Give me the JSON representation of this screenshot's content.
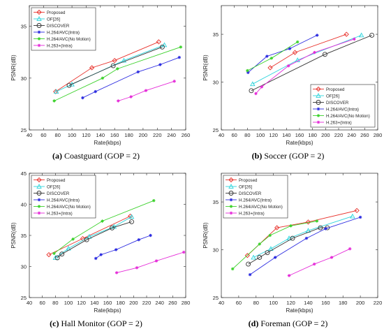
{
  "figure": {
    "captions": [
      {
        "letter": "(a)",
        "text": "Coastguard (GOP = 2)"
      },
      {
        "letter": "(b)",
        "text": "Soccer (GOP = 2)"
      },
      {
        "letter": "(c)",
        "text": "Hall Monitor (GOP = 2)"
      },
      {
        "letter": "(d)",
        "text": "Foreman (GOP = 2)"
      }
    ]
  },
  "series_styles": [
    {
      "name": "Proposed",
      "color": "#e8302a",
      "marker": "diamond"
    },
    {
      "name": "OF[26]",
      "color": "#2dd4dc",
      "marker": "triangle"
    },
    {
      "name": "DISCOVER",
      "color": "#333333",
      "marker": "circle"
    },
    {
      "name": "H.264/AVC(Intra)",
      "color": "#2a2ae0",
      "marker": "star"
    },
    {
      "name": "H.264/AVC(No Motion)",
      "color": "#3ad12a",
      "marker": "star"
    },
    {
      "name": "H.263+(Intra)",
      "color": "#e52ad8",
      "marker": "star"
    }
  ],
  "chart_data": [
    {
      "type": "line",
      "title": "",
      "xlabel": "Rate(kbps)",
      "ylabel": "PSNR(dB)",
      "xlim": [
        40,
        260
      ],
      "ylim": [
        25,
        37
      ],
      "xticks": [
        40,
        60,
        80,
        100,
        120,
        140,
        160,
        180,
        200,
        220,
        240,
        260
      ],
      "yticks": [
        25,
        30,
        35
      ],
      "legend_position": "top-left",
      "series": [
        {
          "name": "Proposed",
          "x": [
            77,
            128,
            160,
            222
          ],
          "y": [
            28.7,
            31.0,
            31.7,
            33.5
          ]
        },
        {
          "name": "OF[26]",
          "x": [
            78,
            100,
            173,
            230
          ],
          "y": [
            28.7,
            29.4,
            31.7,
            33.2
          ]
        },
        {
          "name": "DISCOVER",
          "x": [
            96,
            158,
            227
          ],
          "y": [
            29.3,
            31.2,
            33.0
          ]
        },
        {
          "name": "H.264/AVC(Intra)",
          "x": [
            115,
            133,
            193,
            224,
            251
          ],
          "y": [
            28.1,
            28.7,
            30.6,
            31.3,
            32.0
          ]
        },
        {
          "name": "H.264/AVC(No Motion)",
          "x": [
            75,
            143,
            164,
            253
          ],
          "y": [
            27.8,
            30.0,
            30.9,
            33.0
          ]
        },
        {
          "name": "H.263+(Intra)",
          "x": [
            165,
            183,
            204,
            244
          ],
          "y": [
            27.8,
            28.2,
            28.8,
            29.7
          ]
        }
      ]
    },
    {
      "type": "line",
      "title": "",
      "xlabel": "Rate(kbps)",
      "ylabel": "PSNR(dB)",
      "xlim": [
        40,
        280
      ],
      "ylim": [
        25,
        38
      ],
      "xticks": [
        40,
        60,
        80,
        100,
        120,
        140,
        160,
        180,
        200,
        220,
        240,
        260,
        280
      ],
      "yticks": [
        25,
        30,
        35
      ],
      "legend_position": "bottom-right",
      "series": [
        {
          "name": "Proposed",
          "x": [
            115,
            153,
            232
          ],
          "y": [
            31.5,
            33.1,
            35.0
          ]
        },
        {
          "name": "OF[26]",
          "x": [
            88,
            157,
            255
          ],
          "y": [
            29.8,
            32.3,
            34.9
          ]
        },
        {
          "name": "DISCOVER",
          "x": [
            86,
            199,
            271
          ],
          "y": [
            29.1,
            32.9,
            34.9
          ]
        },
        {
          "name": "H.264/AVC(Intra)",
          "x": [
            81,
            110,
            145,
            187
          ],
          "y": [
            31.0,
            32.7,
            33.5,
            34.9
          ]
        },
        {
          "name": "H.264/AVC(No Motion)",
          "x": [
            80,
            117,
            157
          ],
          "y": [
            31.2,
            32.5,
            34.2
          ]
        },
        {
          "name": "H.263+(Intra)",
          "x": [
            93,
            102,
            143,
            183,
            244
          ],
          "y": [
            28.8,
            29.5,
            31.7,
            33.1,
            34.5
          ]
        }
      ]
    },
    {
      "type": "line",
      "title": "",
      "xlabel": "Rate(kbps)",
      "ylabel": "PSNR(dB)",
      "xlim": [
        40,
        280
      ],
      "ylim": [
        25,
        45
      ],
      "xticks": [
        40,
        60,
        80,
        100,
        120,
        140,
        160,
        180,
        200,
        220,
        240,
        260,
        280
      ],
      "yticks": [
        25,
        30,
        35,
        40,
        45
      ],
      "legend_position": "top-left",
      "series": [
        {
          "name": "Proposed",
          "x": [
            70,
            122,
            195
          ],
          "y": [
            31.9,
            34.5,
            38.1
          ]
        },
        {
          "name": "OF[26]",
          "x": [
            80,
            100,
            132,
            170,
            197
          ],
          "y": [
            31.4,
            32.9,
            34.8,
            36.4,
            38.0
          ]
        },
        {
          "name": "DISCOVER",
          "x": [
            83,
            90,
            128,
            167,
            197
          ],
          "y": [
            31.4,
            32.0,
            34.3,
            36.2,
            37.2
          ]
        },
        {
          "name": "H.264/AVC(Intra)",
          "x": [
            142,
            150,
            173,
            208,
            226
          ],
          "y": [
            31.3,
            31.9,
            32.7,
            34.3,
            35.0
          ]
        },
        {
          "name": "H.264/AVC(No Motion)",
          "x": [
            78,
            107,
            152,
            231
          ],
          "y": [
            32.1,
            34.4,
            37.3,
            40.6
          ]
        },
        {
          "name": "H.263+(Intra)",
          "x": [
            174,
            205,
            235,
            277
          ],
          "y": [
            29.0,
            29.8,
            30.9,
            32.3
          ]
        }
      ]
    },
    {
      "type": "line",
      "title": "",
      "xlabel": "Rate(kbps)",
      "ylabel": "PSNR(dB)",
      "xlim": [
        40,
        220
      ],
      "ylim": [
        25,
        38
      ],
      "xticks": [
        40,
        60,
        80,
        100,
        120,
        140,
        160,
        180,
        200,
        220
      ],
      "yticks": [
        25,
        30,
        35
      ],
      "legend_position": "top-left",
      "series": [
        {
          "name": "Proposed",
          "x": [
            70,
            104,
            140,
            196
          ],
          "y": [
            29.4,
            32.3,
            32.9,
            34.1
          ]
        },
        {
          "name": "OF[26]",
          "x": [
            77,
            97,
            118,
            140,
            191
          ],
          "y": [
            29.2,
            30.1,
            31.2,
            32.0,
            33.5
          ]
        },
        {
          "name": "DISCOVER",
          "x": [
            71,
            84,
            93,
            122,
            154,
            162
          ],
          "y": [
            28.5,
            29.2,
            29.7,
            31.2,
            32.3,
            32.3
          ]
        },
        {
          "name": "H.264/AVC(Intra)",
          "x": [
            73,
            102,
            138,
            160,
            200
          ],
          "y": [
            27.4,
            29.2,
            31.2,
            32.2,
            33.4
          ]
        },
        {
          "name": "H.264/AVC(No Motion)",
          "x": [
            53,
            84,
            96,
            120,
            150
          ],
          "y": [
            28.0,
            30.6,
            31.5,
            32.5,
            33.0
          ]
        },
        {
          "name": "H.263+(Intra)",
          "x": [
            118,
            147,
            167,
            188
          ],
          "y": [
            27.3,
            28.5,
            29.2,
            30.1
          ]
        }
      ]
    }
  ]
}
